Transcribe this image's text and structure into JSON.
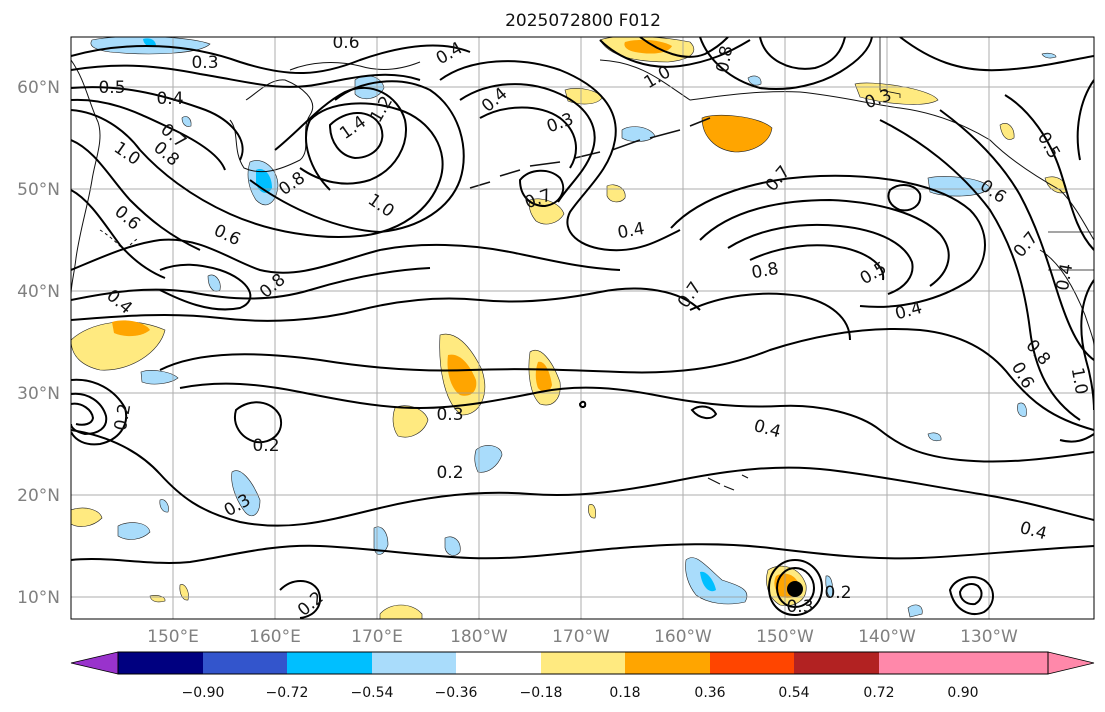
{
  "title": "2025072800 F012",
  "map": {
    "lat_labels": [
      "60°N",
      "50°N",
      "40°N",
      "30°N",
      "20°N",
      "10°N"
    ],
    "lon_labels": [
      "150°E",
      "160°E",
      "170°E",
      "180°W",
      "170°W",
      "160°W",
      "150°W",
      "140°W",
      "130°W"
    ],
    "contour_labels": [
      "0.6",
      "0.3",
      "0.5",
      "0.4",
      "1.0",
      "0.8",
      "0.7",
      "0.6",
      "0.4",
      "0.8",
      "1.4",
      "1.2",
      "1.0",
      "0.6",
      "0.8",
      "0.4",
      "0.3",
      "0.7",
      "0.4",
      "0.8",
      "1.0",
      "0.4",
      "0.3",
      "0.5",
      "0.7",
      "0.6",
      "0.7",
      "0.4",
      "0.8",
      "0.5",
      "0.7",
      "0.4",
      "0.8",
      "0.6",
      "1.0",
      "0.3",
      "0.2",
      "0.2",
      "0.3",
      "0.4",
      "0.4",
      "0.2",
      "0.3",
      "0.2",
      "0.2"
    ]
  },
  "colorbar": {
    "ticks": [
      "−0.90",
      "−0.72",
      "−0.54",
      "−0.36",
      "−0.18",
      "0.18",
      "0.36",
      "0.54",
      "0.72",
      "0.90"
    ],
    "colors": [
      "#9933cc",
      "#000080",
      "#3355cc",
      "#00bfff",
      "#a9dcfb",
      "#ffffff",
      "#ffea80",
      "#ffa500",
      "#ff4500",
      "#b22222",
      "#ff88aa",
      "#ff88aa"
    ]
  }
}
